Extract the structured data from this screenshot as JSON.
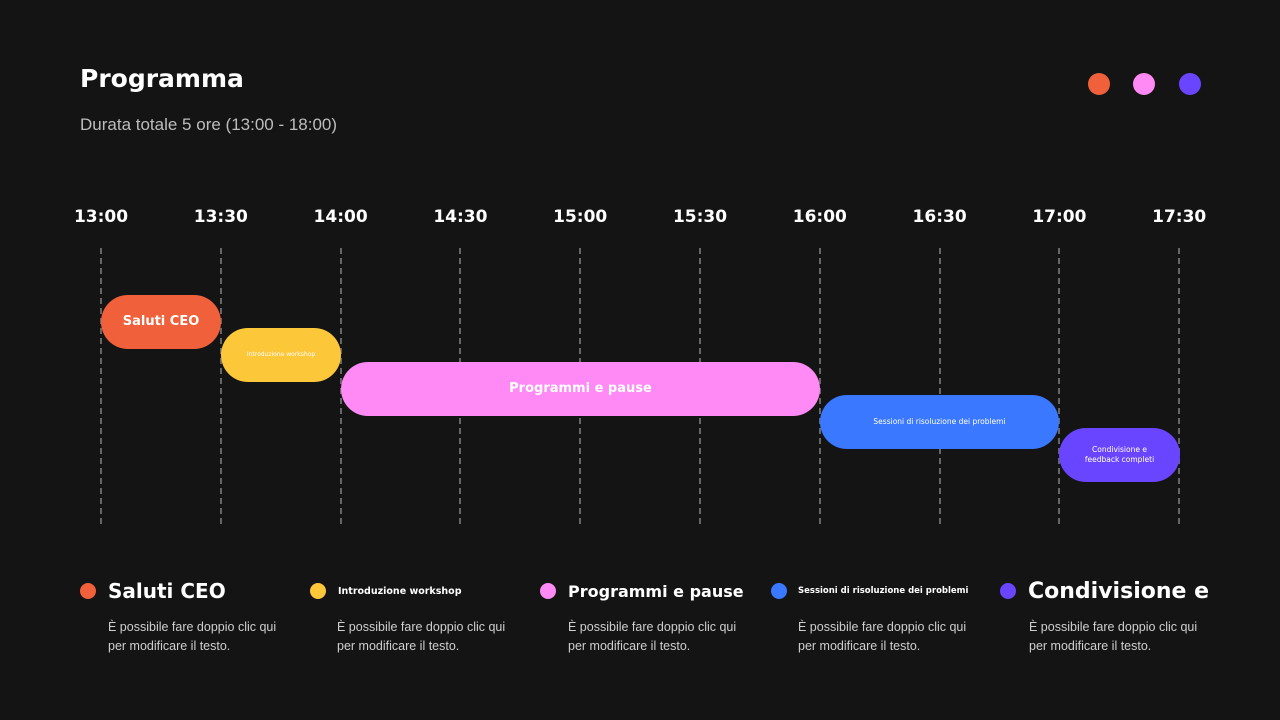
{
  "header": {
    "title": "Programma",
    "subtitle": "Durata totale 5 ore (13:00 - 18:00)"
  },
  "timeline": {
    "times": [
      "13:00",
      "13:30",
      "14:00",
      "14:30",
      "15:00",
      "15:30",
      "16:00",
      "16:30",
      "17:00",
      "17:30"
    ],
    "tasks": [
      {
        "label": "Saluti CEO"
      },
      {
        "label": "Introduzione workshop"
      },
      {
        "label": "Programmi e pause"
      },
      {
        "label": "Sessioni di risoluzione dei problemi"
      },
      {
        "label": "Condivisione e feedback completi"
      }
    ]
  },
  "legend": [
    {
      "title": "Saluti CEO",
      "description": "È possibile fare doppio clic qui per modificare il testo."
    },
    {
      "title": "Introduzione workshop",
      "description": "È possibile fare doppio clic qui per modificare il testo."
    },
    {
      "title": "Programmi e pause",
      "description": "È possibile fare doppio clic qui per modificare il testo."
    },
    {
      "title": "Sessioni di risoluzione dei problemi",
      "description": "È possibile fare doppio clic qui per modificare il testo."
    },
    {
      "title": "Condivisione e",
      "description": "È possibile fare doppio clic qui per modificare il testo."
    }
  ]
}
